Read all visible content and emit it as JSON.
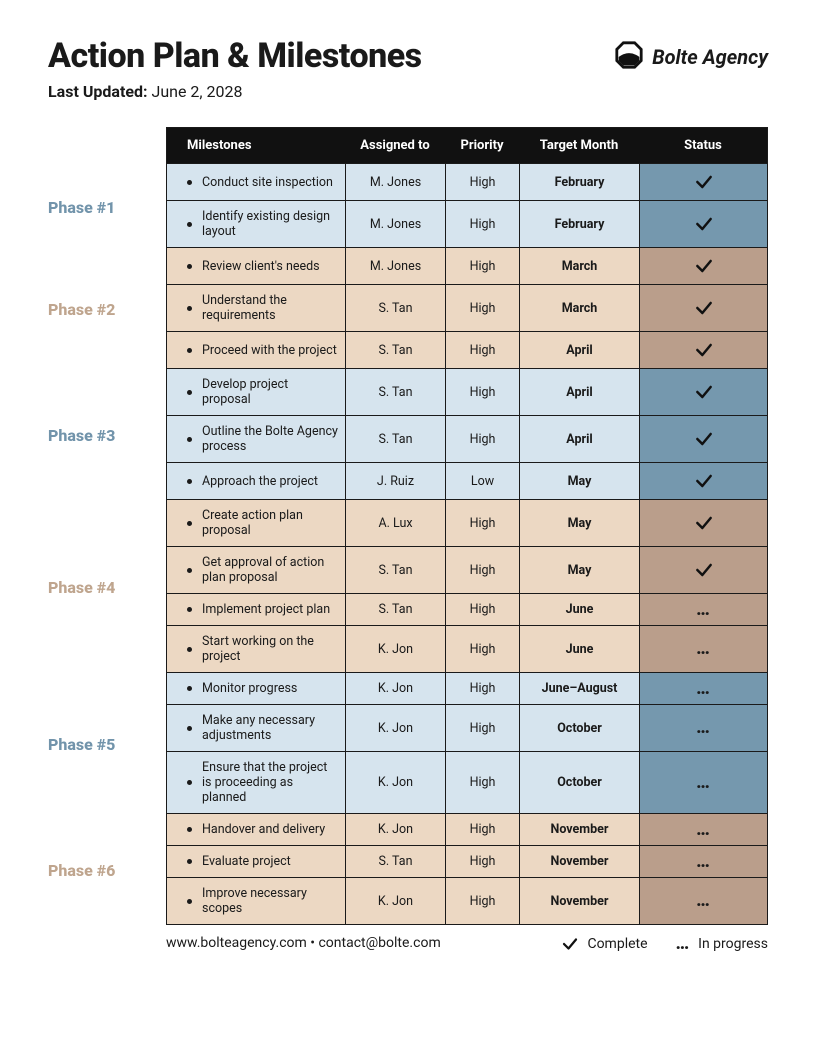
{
  "header": {
    "title": "Action Plan & Milestones",
    "updated_label": "Last Updated:",
    "updated_value": "June 2, 2028",
    "logo_text": "Bolte Agency"
  },
  "colors": {
    "blue_light": "#d6e4ee",
    "blue_dark": "#7598ae",
    "tan_light": "#ecd8c3",
    "tan_dark": "#ba9e8b",
    "phase_blue": "#7294ab",
    "phase_tan": "#bfa58e",
    "header_bg": "#111111",
    "border": "#1a1a1a"
  },
  "columns": {
    "milestones": "Milestones",
    "assigned": "Assigned to",
    "priority": "Priority",
    "target": "Target Month",
    "status": "Status"
  },
  "phases": [
    {
      "label": "Phase #1",
      "theme": "blue",
      "rows": [
        {
          "milestone": "Conduct site inspection",
          "assigned": "M. Jones",
          "priority": "High",
          "target": "February",
          "status": "complete"
        },
        {
          "milestone": "Identify existing design layout",
          "assigned": "M. Jones",
          "priority": "High",
          "target": "February",
          "status": "complete"
        }
      ]
    },
    {
      "label": "Phase #2",
      "theme": "tan",
      "rows": [
        {
          "milestone": "Review client's needs",
          "assigned": "M. Jones",
          "priority": "High",
          "target": "March",
          "status": "complete"
        },
        {
          "milestone": "Understand the requirements",
          "assigned": "S. Tan",
          "priority": "High",
          "target": "March",
          "status": "complete"
        },
        {
          "milestone": "Proceed with the project",
          "assigned": "S. Tan",
          "priority": "High",
          "target": "April",
          "status": "complete"
        }
      ]
    },
    {
      "label": "Phase #3",
      "theme": "blue",
      "rows": [
        {
          "milestone": "Develop project proposal",
          "assigned": "S. Tan",
          "priority": "High",
          "target": "April",
          "status": "complete"
        },
        {
          "milestone": "Outline the Bolte Agency process",
          "assigned": "S. Tan",
          "priority": "High",
          "target": "April",
          "status": "complete"
        },
        {
          "milestone": "Approach the project",
          "assigned": "J. Ruiz",
          "priority": "Low",
          "target": "May",
          "status": "complete"
        }
      ]
    },
    {
      "label": "Phase #4",
      "theme": "tan",
      "rows": [
        {
          "milestone": "Create action plan proposal",
          "assigned": "A. Lux",
          "priority": "High",
          "target": "May",
          "status": "complete"
        },
        {
          "milestone": "Get approval of action plan proposal",
          "assigned": "S. Tan",
          "priority": "High",
          "target": "May",
          "status": "complete"
        },
        {
          "milestone": "Implement project plan",
          "assigned": "S. Tan",
          "priority": "High",
          "target": "June",
          "status": "progress"
        },
        {
          "milestone": "Start working on the project",
          "assigned": "K. Jon",
          "priority": "High",
          "target": "June",
          "status": "progress"
        }
      ]
    },
    {
      "label": "Phase #5",
      "theme": "blue",
      "rows": [
        {
          "milestone": "Monitor progress",
          "assigned": "K. Jon",
          "priority": "High",
          "target": "June–August",
          "status": "progress"
        },
        {
          "milestone": "Make any necessary adjustments",
          "assigned": "K. Jon",
          "priority": "High",
          "target": "October",
          "status": "progress"
        },
        {
          "milestone": "Ensure that the project is proceeding as planned",
          "assigned": "K. Jon",
          "priority": "High",
          "target": "October",
          "status": "progress"
        }
      ]
    },
    {
      "label": "Phase #6",
      "theme": "tan",
      "rows": [
        {
          "milestone": "Handover and delivery",
          "assigned": "K. Jon",
          "priority": "High",
          "target": "November",
          "status": "progress"
        },
        {
          "milestone": "Evaluate project",
          "assigned": "S. Tan",
          "priority": "High",
          "target": "November",
          "status": "progress"
        },
        {
          "milestone": "Improve necessary scopes",
          "assigned": "K. Jon",
          "priority": "High",
          "target": "November",
          "status": "progress"
        }
      ]
    }
  ],
  "footer": {
    "contact": "www.bolteagency.com • contact@bolte.com",
    "legend_complete": "Complete",
    "legend_progress": "In progress"
  }
}
